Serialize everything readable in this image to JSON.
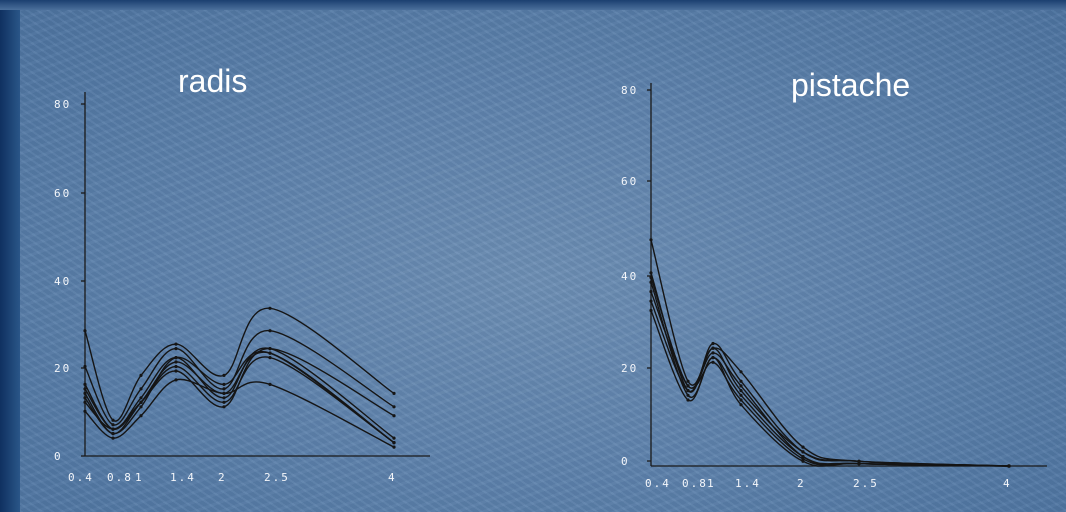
{
  "chart_data": [
    {
      "type": "line",
      "title": "radis",
      "x": [
        0.4,
        0.8,
        1,
        1.4,
        2,
        2.5,
        4
      ],
      "x_tick_labels": [
        "0.4",
        "0.8",
        "1",
        "1.4",
        "2",
        "2.5",
        "4"
      ],
      "y_tick_labels": [
        "0",
        "20",
        "40",
        "60",
        "80"
      ],
      "xlim": [
        0.4,
        4
      ],
      "ylim": [
        0,
        80
      ],
      "grid": false,
      "series": [
        {
          "values": [
            28,
            8,
            18,
            25,
            18,
            33,
            14
          ]
        },
        {
          "values": [
            20,
            7,
            15,
            24,
            15,
            28,
            11
          ]
        },
        {
          "values": [
            16,
            6,
            13,
            22,
            13,
            24,
            4
          ]
        },
        {
          "values": [
            14,
            5,
            12,
            21,
            14,
            23,
            3
          ]
        },
        {
          "values": [
            15,
            6,
            12,
            20,
            12,
            22,
            3
          ]
        },
        {
          "values": [
            13,
            5,
            11,
            22,
            16,
            23,
            3
          ]
        },
        {
          "values": [
            12,
            6,
            12,
            19,
            11,
            24,
            9
          ]
        },
        {
          "values": [
            10,
            4,
            9,
            17,
            14,
            16,
            2
          ]
        }
      ]
    },
    {
      "type": "line",
      "title": "pistache",
      "x": [
        0.4,
        0.8,
        1,
        1.4,
        2,
        2.5,
        4
      ],
      "x_tick_labels": [
        "0.4",
        "0.8",
        "1",
        "1.4",
        "2",
        "2.5",
        "4"
      ],
      "y_tick_labels": [
        "0",
        "20",
        "40",
        "60",
        "80"
      ],
      "xlim": [
        0.4,
        4
      ],
      "ylim": [
        0,
        80
      ],
      "grid": false,
      "series": [
        {
          "values": [
            48,
            18,
            25,
            20,
            4,
            1,
            0
          ]
        },
        {
          "values": [
            41,
            16,
            26,
            18,
            3,
            1,
            0
          ]
        },
        {
          "values": [
            40,
            17,
            24,
            17,
            2,
            0.5,
            0
          ]
        },
        {
          "values": [
            39,
            15,
            23,
            15,
            2,
            0.5,
            0
          ]
        },
        {
          "values": [
            37,
            17,
            22,
            14,
            1.5,
            0.5,
            0
          ]
        },
        {
          "values": [
            35,
            16,
            25,
            16,
            3,
            1,
            0
          ]
        },
        {
          "values": [
            33,
            14,
            23,
            13,
            1,
            0.5,
            0
          ]
        }
      ]
    }
  ]
}
